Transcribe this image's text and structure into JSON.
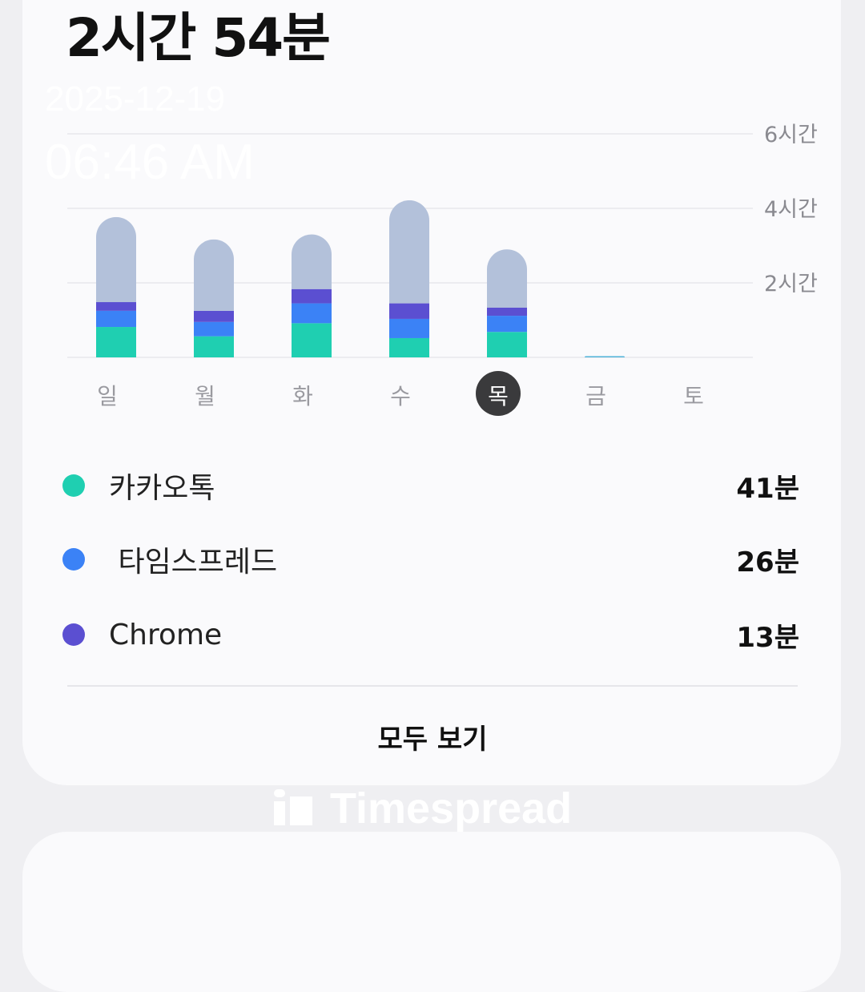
{
  "summary": {
    "total": "2시간 54분"
  },
  "overlay": {
    "date": "2025-12-19",
    "time": "06:46 AM"
  },
  "chart_data": {
    "type": "bar",
    "stacked": true,
    "categories": [
      "일",
      "월",
      "화",
      "수",
      "목",
      "금",
      "토"
    ],
    "selected_category": "목",
    "y_unit": "minutes",
    "ylim": [
      0,
      360
    ],
    "y_ticks": [
      {
        "value": 120,
        "label": "2시간"
      },
      {
        "value": 240,
        "label": "4시간"
      },
      {
        "value": 360,
        "label": "6시간"
      }
    ],
    "grid": true,
    "series": [
      {
        "name": "카카오톡",
        "color": "#1fcfb1",
        "values": [
          49,
          34,
          55,
          31,
          41,
          0,
          0
        ]
      },
      {
        "name": "타임스프레드",
        "color": "#3b82f6",
        "values": [
          26,
          23,
          32,
          31,
          26,
          0,
          0
        ]
      },
      {
        "name": "Chrome",
        "color": "#5b4fd1",
        "values": [
          14,
          18,
          23,
          25,
          13,
          0,
          0
        ]
      },
      {
        "color": "#b3c1da",
        "values": [
          137,
          115,
          88,
          166,
          94,
          2,
          0
        ]
      }
    ]
  },
  "legend": [
    {
      "name": "카카오톡",
      "value": "41분",
      "color": "#1fcfb1"
    },
    {
      "name": " 타임스프레드",
      "value": "26분",
      "color": "#3b82f6"
    },
    {
      "name": "Chrome",
      "value": "13분",
      "color": "#5b4fd1"
    }
  ],
  "see_all": "모두 보기",
  "watermark": {
    "brand": "Timespread"
  }
}
